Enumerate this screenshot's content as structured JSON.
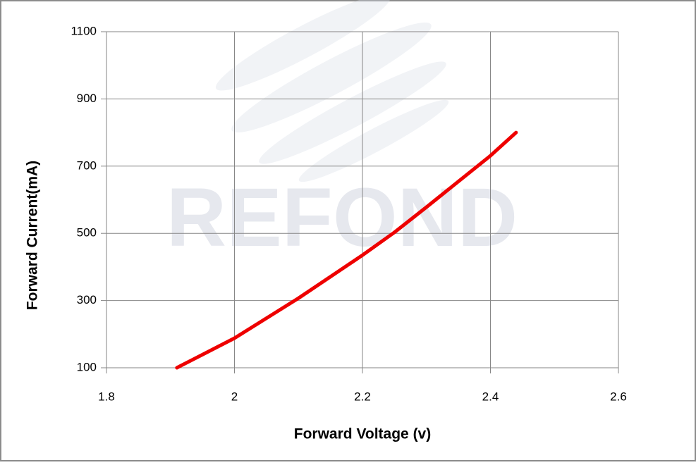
{
  "chart_data": {
    "type": "line",
    "watermark": "REFOND",
    "x_label": "Forward Voltage (v)",
    "y_label": "Forward Current(mA)",
    "x": [
      1.91,
      2.0,
      2.1,
      2.2,
      2.25,
      2.3,
      2.4,
      2.44
    ],
    "series": [
      {
        "color": "#ee0000",
        "values": [
          100,
          188,
          307,
          435,
          503,
          578,
          731,
          800
        ]
      }
    ],
    "xlim": [
      1.8,
      2.6
    ],
    "xticks": [
      1.8,
      2,
      2.2,
      2.4,
      2.6
    ],
    "ylim": [
      100,
      1100
    ],
    "yticks": [
      100,
      300,
      500,
      700,
      900,
      1100
    ],
    "grid": true
  }
}
